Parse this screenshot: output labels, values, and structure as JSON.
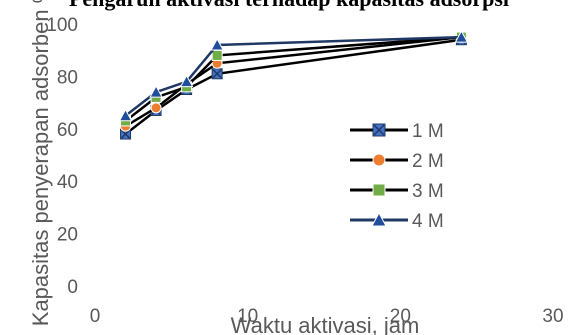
{
  "chart_data": {
    "type": "line",
    "title": "Pengaruh aktivasi terhadap kapasitas adsorpsi",
    "xlabel": "Waktu aktivasi, jam",
    "ylabel": "Kapasitas penyerapan adsorben %",
    "xlim": [
      0,
      30
    ],
    "ylim": [
      0,
      100
    ],
    "x_ticks": [
      "0",
      "10",
      "20",
      "30"
    ],
    "y_ticks": [
      "0",
      "20",
      "40",
      "60",
      "80",
      "100"
    ],
    "grid": false,
    "legend_position": "right",
    "x": [
      2,
      4,
      6,
      8,
      24
    ],
    "series": [
      {
        "name": "1 M",
        "values": [
          58,
          67,
          75,
          81,
          94
        ],
        "color": "#4472c4",
        "marker": "x-square"
      },
      {
        "name": "2 M",
        "values": [
          61,
          68,
          77,
          85,
          95
        ],
        "color": "#ed7d31",
        "marker": "circle"
      },
      {
        "name": "3 M",
        "values": [
          63,
          72,
          76,
          88,
          95
        ],
        "color": "#70ad47",
        "marker": "square"
      },
      {
        "name": "4 M",
        "values": [
          65,
          74,
          78,
          92,
          95
        ],
        "color": "#1f4e9c",
        "marker": "triangle"
      }
    ]
  }
}
